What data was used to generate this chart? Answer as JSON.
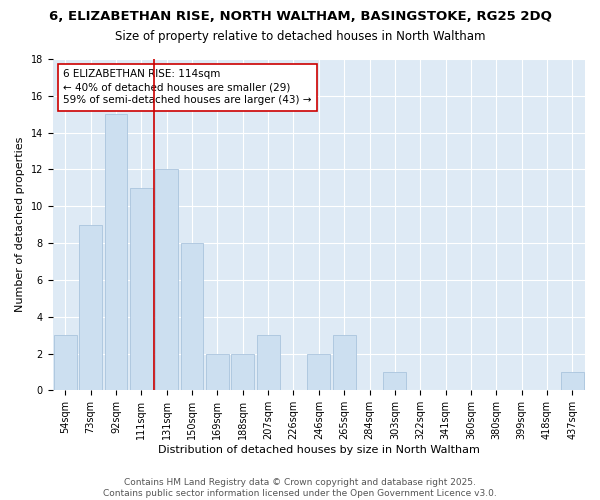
{
  "title1": "6, ELIZABETHAN RISE, NORTH WALTHAM, BASINGSTOKE, RG25 2DQ",
  "title2": "Size of property relative to detached houses in North Waltham",
  "xlabel": "Distribution of detached houses by size in North Waltham",
  "ylabel": "Number of detached properties",
  "categories": [
    "54sqm",
    "73sqm",
    "92sqm",
    "111sqm",
    "131sqm",
    "150sqm",
    "169sqm",
    "188sqm",
    "207sqm",
    "226sqm",
    "246sqm",
    "265sqm",
    "284sqm",
    "303sqm",
    "322sqm",
    "341sqm",
    "360sqm",
    "380sqm",
    "399sqm",
    "418sqm",
    "437sqm"
  ],
  "values": [
    3,
    9,
    15,
    11,
    12,
    8,
    2,
    2,
    3,
    0,
    2,
    3,
    0,
    1,
    0,
    0,
    0,
    0,
    0,
    0,
    1
  ],
  "bar_color": "#ccdff0",
  "bar_edge_color": "#aac4dd",
  "vline_x": 3.5,
  "vline_color": "#cc0000",
  "annotation_line1": "6 ELIZABETHAN RISE: 114sqm",
  "annotation_line2": "← 40% of detached houses are smaller (29)",
  "annotation_line3": "59% of semi-detached houses are larger (43) →",
  "annotation_box_color": "#ffffff",
  "annotation_box_edge": "#cc0000",
  "ylim": [
    0,
    18
  ],
  "yticks": [
    0,
    2,
    4,
    6,
    8,
    10,
    12,
    14,
    16,
    18
  ],
  "bg_color": "#deeaf5",
  "footer": "Contains HM Land Registry data © Crown copyright and database right 2025.\nContains public sector information licensed under the Open Government Licence v3.0.",
  "title_fontsize": 9.5,
  "subtitle_fontsize": 8.5,
  "axis_label_fontsize": 8,
  "tick_fontsize": 7,
  "annotation_fontsize": 7.5,
  "footer_fontsize": 6.5
}
